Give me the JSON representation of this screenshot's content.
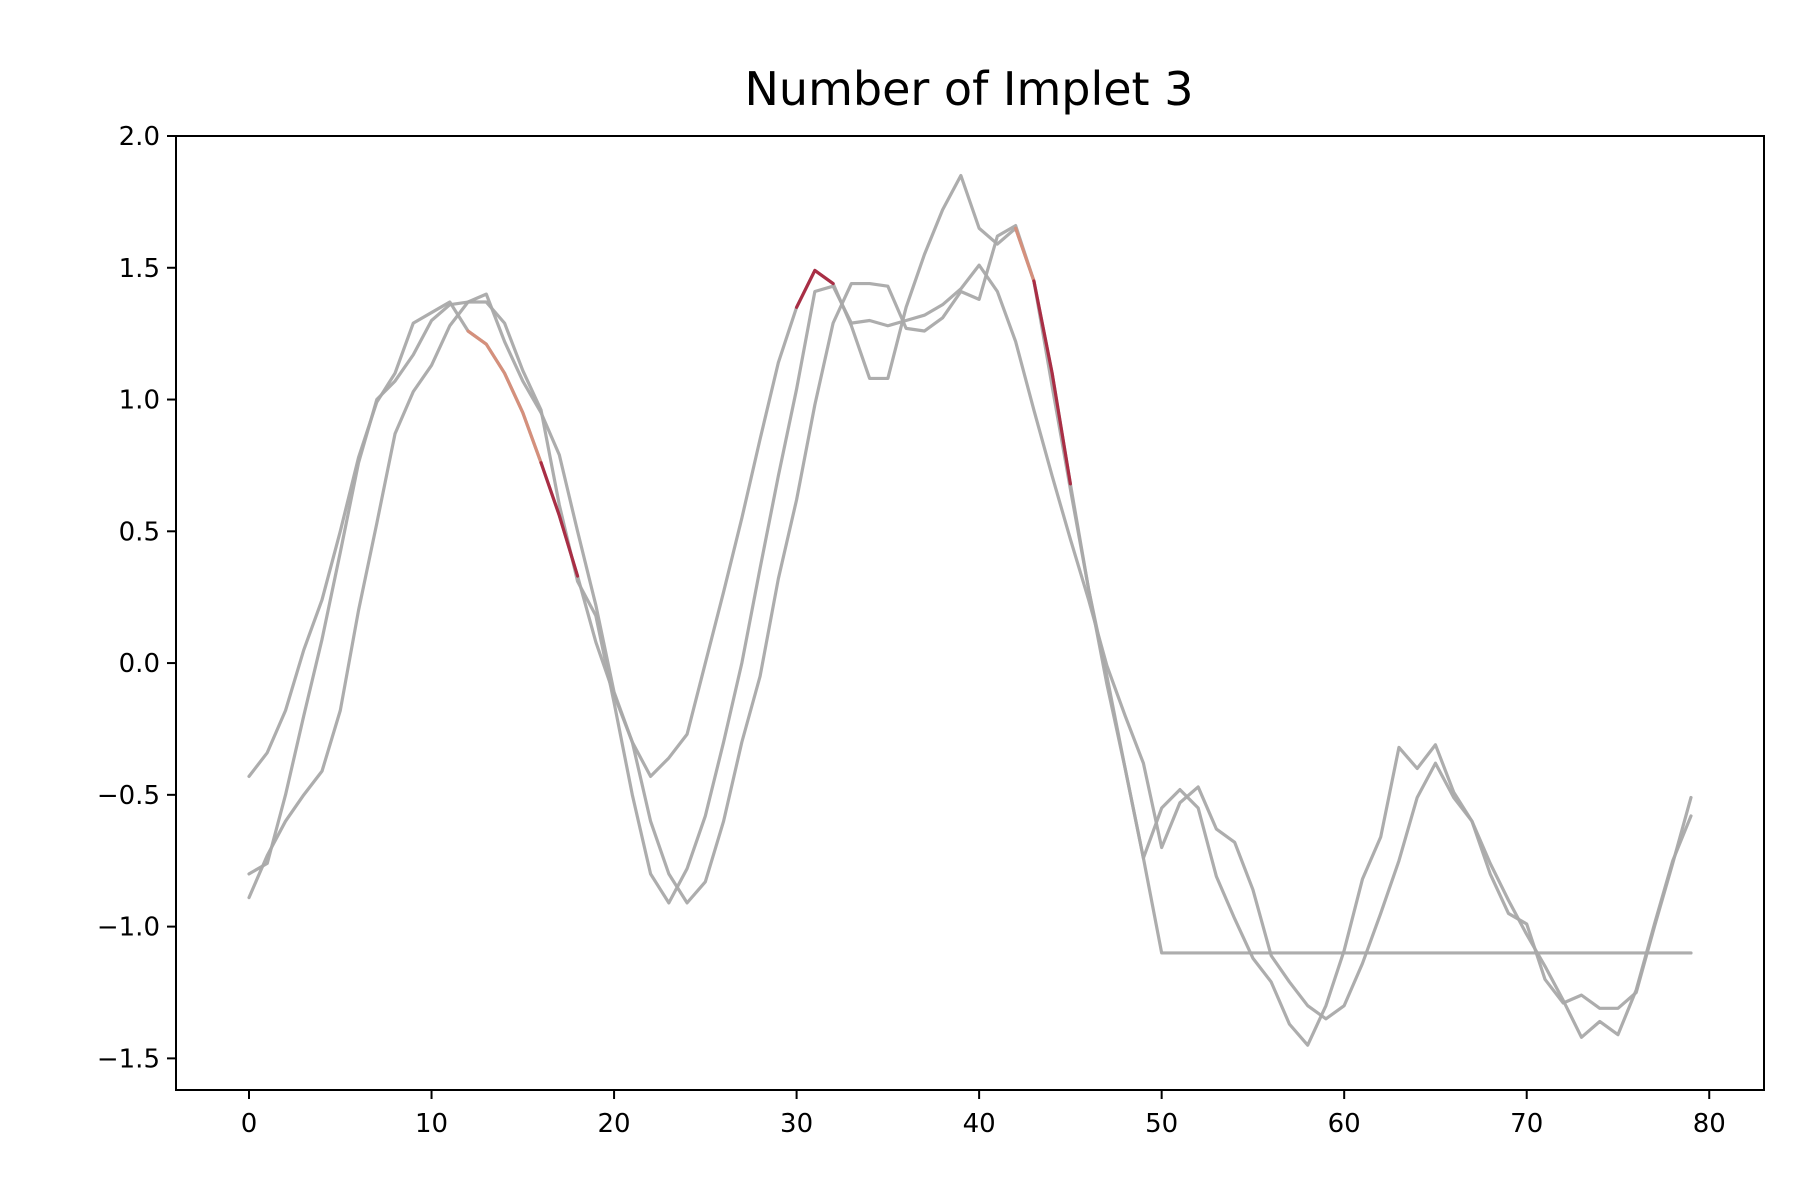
{
  "chart_data": {
    "type": "line",
    "title": "Number of Implet 3",
    "xlabel": "",
    "ylabel": "",
    "xlim": [
      -4,
      83
    ],
    "ylim": [
      -1.62,
      2.0
    ],
    "x_ticks": [
      0,
      10,
      20,
      30,
      40,
      50,
      60,
      70,
      80
    ],
    "x_tick_labels": [
      "0",
      "10",
      "20",
      "30",
      "40",
      "50",
      "60",
      "70",
      "80"
    ],
    "y_ticks": [
      2.0,
      1.5,
      1.0,
      0.5,
      0.0,
      -0.5,
      -1.0,
      -1.5
    ],
    "y_tick_labels": [
      "2.0",
      "1.5",
      "1.0",
      "0.5",
      "0.0",
      "−0.5",
      "−1.0",
      "−1.5"
    ],
    "grid": false,
    "legend": "none",
    "colors": {
      "series": "#a9a9a9",
      "highlight_light": "#d98d77",
      "highlight_dark": "#a8203a",
      "axes": "#000000",
      "background": "#ffffff"
    },
    "x": [
      0,
      1,
      2,
      3,
      4,
      5,
      6,
      7,
      8,
      9,
      10,
      11,
      12,
      13,
      14,
      15,
      16,
      17,
      18,
      19,
      20,
      21,
      22,
      23,
      24,
      25,
      26,
      27,
      28,
      29,
      30,
      31,
      32,
      33,
      34,
      35,
      36,
      37,
      38,
      39,
      40,
      41,
      42,
      43,
      44,
      45,
      46,
      47,
      48,
      49,
      50,
      51,
      52,
      53,
      54,
      55,
      56,
      57,
      58,
      59,
      60,
      61,
      62,
      63,
      64,
      65,
      66,
      67,
      68,
      69,
      70,
      71,
      72,
      73,
      74,
      75,
      76,
      77,
      78,
      79
    ],
    "series": [
      {
        "values": [
          -0.43,
          -0.34,
          -0.18,
          0.05,
          0.24,
          0.5,
          0.78,
          0.99,
          1.1,
          1.29,
          1.33,
          1.37,
          1.26,
          1.21,
          1.1,
          0.95,
          0.76,
          0.56,
          0.33,
          0.08,
          -0.12,
          -0.3,
          -0.43,
          -0.36,
          -0.27,
          0.0,
          0.27,
          0.55,
          0.85,
          1.14,
          1.35,
          1.49,
          1.44,
          1.28,
          1.08,
          1.08,
          1.35,
          1.55,
          1.72,
          1.85,
          1.65,
          1.59,
          1.65,
          1.45,
          1.1,
          0.68,
          0.28,
          -0.05,
          -0.4,
          -0.74,
          -1.1,
          -1.1,
          -1.1,
          -1.1,
          -1.1,
          -1.1,
          -1.1,
          -1.1,
          -1.1,
          -1.1,
          -1.1,
          -1.1,
          -1.1,
          -1.1,
          -1.1,
          -1.1,
          -1.1,
          -1.1,
          -1.1,
          -1.1,
          -1.1,
          -1.1,
          -1.1,
          -1.1,
          -1.1,
          -1.1,
          -1.1,
          -1.1,
          -1.1,
          -1.1
        ],
        "highlight_segments": [
          {
            "from": 12,
            "to": 16,
            "tone": "light"
          },
          {
            "from": 16,
            "to": 18,
            "tone": "dark"
          },
          {
            "from": 30,
            "to": 32,
            "tone": "dark"
          },
          {
            "from": 42,
            "to": 43,
            "tone": "light"
          },
          {
            "from": 43,
            "to": 45,
            "tone": "dark"
          }
        ]
      },
      {
        "values": [
          -0.8,
          -0.76,
          -0.5,
          -0.2,
          0.09,
          0.42,
          0.76,
          1.0,
          1.07,
          1.17,
          1.3,
          1.36,
          1.37,
          1.4,
          1.22,
          1.07,
          0.95,
          0.79,
          0.5,
          0.22,
          -0.11,
          -0.3,
          -0.6,
          -0.8,
          -0.91,
          -0.83,
          -0.6,
          -0.3,
          -0.05,
          0.32,
          0.62,
          0.98,
          1.29,
          1.44,
          1.44,
          1.43,
          1.27,
          1.26,
          1.31,
          1.41,
          1.38,
          1.62,
          1.66,
          1.45,
          1.05,
          0.66,
          0.28,
          -0.08,
          -0.4,
          -0.74,
          -0.55,
          -0.48,
          -0.55,
          -0.81,
          -0.97,
          -1.12,
          -1.21,
          -1.37,
          -1.45,
          -1.3,
          -1.09,
          -0.82,
          -0.66,
          -0.32,
          -0.4,
          -0.31,
          -0.49,
          -0.6,
          -0.8,
          -0.95,
          -0.99,
          -1.2,
          -1.29,
          -1.26,
          -1.31,
          -1.31,
          -1.25,
          -1.0,
          -0.76,
          -0.51
        ]
      },
      {
        "values": [
          -0.89,
          -0.73,
          -0.6,
          -0.5,
          -0.41,
          -0.18,
          0.2,
          0.53,
          0.87,
          1.03,
          1.13,
          1.28,
          1.37,
          1.37,
          1.29,
          1.11,
          0.96,
          0.6,
          0.31,
          0.18,
          -0.15,
          -0.5,
          -0.8,
          -0.91,
          -0.78,
          -0.58,
          -0.3,
          0.0,
          0.36,
          0.71,
          1.04,
          1.41,
          1.43,
          1.29,
          1.3,
          1.28,
          1.3,
          1.32,
          1.36,
          1.42,
          1.51,
          1.41,
          1.22,
          0.96,
          0.71,
          0.47,
          0.24,
          -0.01,
          -0.2,
          -0.38,
          -0.7,
          -0.53,
          -0.47,
          -0.63,
          -0.68,
          -0.86,
          -1.11,
          -1.21,
          -1.3,
          -1.35,
          -1.3,
          -1.14,
          -0.95,
          -0.75,
          -0.51,
          -0.38,
          -0.51,
          -0.6,
          -0.76,
          -0.9,
          -1.03,
          -1.15,
          -1.28,
          -1.42,
          -1.36,
          -1.41,
          -1.24,
          -0.99,
          -0.75,
          -0.58
        ]
      }
    ]
  }
}
